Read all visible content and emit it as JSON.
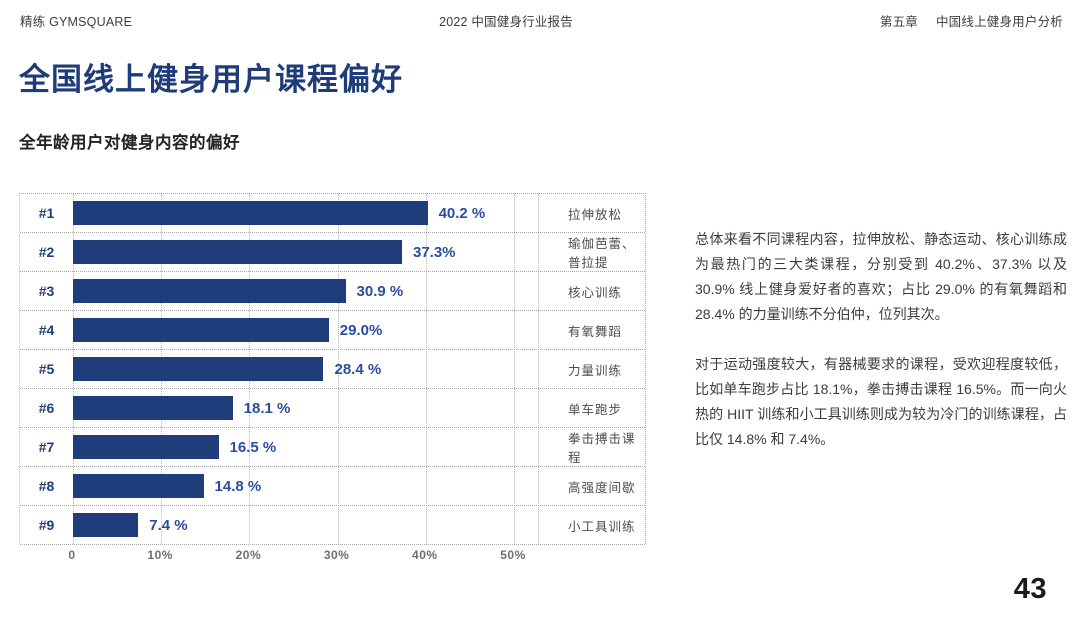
{
  "header": {
    "brand": "精练 GYMSQUARE",
    "report_title": "2022 中国健身行业报告",
    "chapter": "第五章",
    "chapter_title": "中国线上健身用户分析"
  },
  "page": {
    "title": "全国线上健身用户课程偏好",
    "subtitle": "全年龄用户对健身内容的偏好",
    "page_number": "43"
  },
  "chart_data": {
    "type": "bar",
    "orientation": "horizontal",
    "title": "全年龄用户对健身内容的偏好",
    "ranks": [
      "#1",
      "#2",
      "#3",
      "#4",
      "#5",
      "#6",
      "#7",
      "#8",
      "#9"
    ],
    "categories": [
      "拉伸放松",
      "瑜伽芭蕾、普拉提",
      "核心训练",
      "有氧舞蹈",
      "力量训练",
      "单车跑步",
      "拳击搏击课程",
      "高强度间歇",
      "小工具训练"
    ],
    "values": [
      40.2,
      37.3,
      30.9,
      29.0,
      28.4,
      18.1,
      16.5,
      14.8,
      7.4
    ],
    "value_labels": [
      "40.2 %",
      "37.3%",
      "30.9 %",
      "29.0%",
      "28.4 %",
      "18.1 %",
      "16.5 %",
      "14.8 %",
      "7.4 %"
    ],
    "x_ticks": [
      "0",
      "10%",
      "20%",
      "30%",
      "40%",
      "50%"
    ],
    "xlim": [
      0,
      50
    ],
    "grid": "dotted-vertical",
    "legend": "none",
    "bar_color": "#1f3d7a",
    "value_color": "#2b4da0"
  },
  "commentary": {
    "paragraph1": "总体来看不同课程内容，拉伸放松、静态运动、核心训练成为最热门的三大类课程，分别受到 40.2%、37.3% 以及 30.9% 线上健身爱好者的喜欢；占比 29.0% 的有氧舞蹈和 28.4% 的力量训练不分伯仲，位列其次。",
    "paragraph2": "对于运动强度较大，有器械要求的课程，受欢迎程度较低，比如单车跑步占比 18.1%，拳击搏击课程 16.5%。而一向火热的 HIIT 训练和小工具训练则成为较为冷门的训练课程，占比仅 14.8% 和 7.4%。"
  }
}
